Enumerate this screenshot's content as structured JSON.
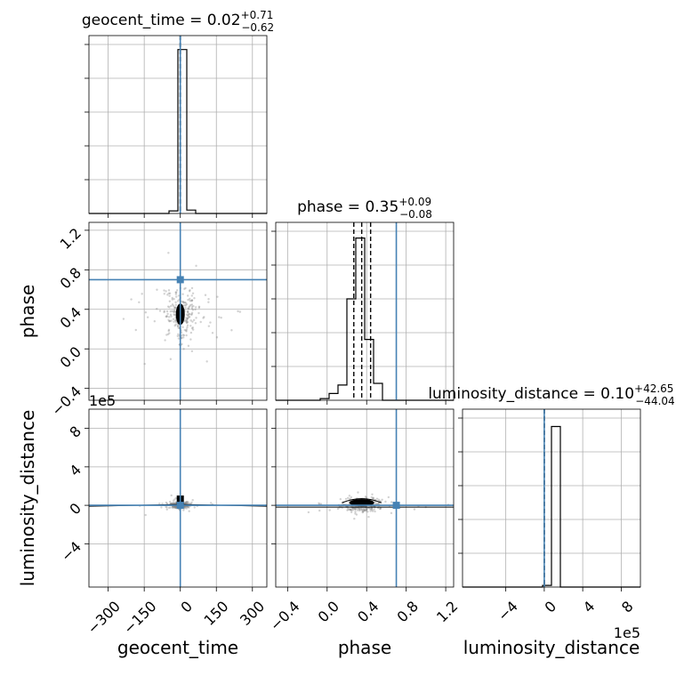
{
  "chart_data": {
    "type": "corner",
    "parameters": [
      "geocent_time",
      "phase",
      "luminosity_distance"
    ],
    "titles": [
      {
        "param": "geocent_time",
        "base": "geocent_time = 0.02",
        "plus": "+0.71",
        "minus": "−0.62"
      },
      {
        "param": "phase",
        "base": "phase = 0.35",
        "plus": "+0.09",
        "minus": "−0.08"
      },
      {
        "param": "luminosity_distance",
        "base": "luminosity_distance = 0.10",
        "plus": "+42.65",
        "minus": "−44.04"
      }
    ],
    "axis_ranges": {
      "geocent_time": [
        -380,
        360
      ],
      "phase": [
        -0.52,
        1.28
      ],
      "luminosity_distance": [
        -850000,
        1000000
      ]
    },
    "ticks": {
      "geocent_time": [
        -300,
        -150,
        0,
        150,
        300
      ],
      "phase": [
        -0.4,
        0.0,
        0.4,
        0.8,
        1.2
      ],
      "luminosity_distance": [
        -400000,
        0,
        400000,
        800000
      ]
    },
    "tick_labels": {
      "geocent_time": [
        "−300",
        "−150",
        "0",
        "150",
        "300"
      ],
      "phase": [
        "−0.4",
        "0.0",
        "0.4",
        "0.8",
        "1.2"
      ],
      "luminosity_distance": [
        "−4",
        "0",
        "4",
        "8"
      ]
    },
    "offset_label": "1e5",
    "truth": {
      "geocent_time": 0.0,
      "phase": 0.7,
      "luminosity_distance": 0.0
    },
    "quantiles": {
      "geocent_time": [
        -0.6,
        0.02,
        0.73
      ],
      "phase": [
        0.27,
        0.35,
        0.44
      ],
      "luminosity_distance": [
        -44,
        0.1,
        42.75
      ]
    },
    "histograms": {
      "geocent_time": {
        "edges": [
          -380,
          -343,
          -306,
          -269,
          -232,
          -195,
          -158,
          -121,
          -84,
          -47,
          -10,
          27,
          64,
          101,
          138,
          175,
          212,
          249,
          286,
          323,
          360
        ],
        "counts": [
          0,
          0,
          0,
          0,
          0,
          0,
          0,
          0,
          0,
          0.015,
          0.97,
          0.02,
          0,
          0,
          0,
          0,
          0,
          0,
          0,
          0
        ]
      },
      "phase": {
        "edges": [
          -0.52,
          -0.43,
          -0.34,
          -0.25,
          -0.16,
          -0.07,
          0.02,
          0.11,
          0.2,
          0.29,
          0.38,
          0.47,
          0.56,
          0.65,
          0.74,
          0.83,
          0.92,
          1.01,
          1.1,
          1.19,
          1.28
        ],
        "counts": [
          0,
          0,
          0,
          0,
          0,
          0.01,
          0.04,
          0.09,
          0.6,
          0.96,
          0.36,
          0.1,
          0,
          0,
          0,
          0,
          0,
          0,
          0,
          0
        ]
      },
      "luminosity_distance": {
        "edges": [
          -850000,
          -757500,
          -665000,
          -572500,
          -480000,
          -387500,
          -295000,
          -202500,
          -110000,
          -17500,
          75000,
          167500,
          260000,
          352500,
          445000,
          537500,
          630000,
          722500,
          815000,
          907500,
          1000000
        ],
        "counts": [
          0,
          0,
          0,
          0,
          0,
          0,
          0,
          0,
          0,
          0.01,
          0.95,
          0,
          0,
          0,
          0,
          0,
          0,
          0,
          0,
          0
        ]
      }
    },
    "grid": true
  }
}
